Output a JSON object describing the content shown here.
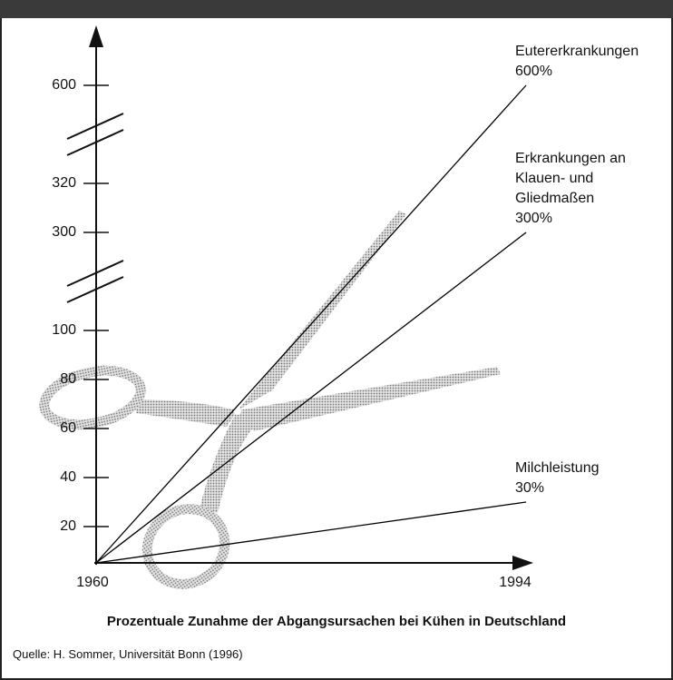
{
  "chart_data": {
    "type": "line",
    "x": [
      1960,
      1994
    ],
    "xlim": [
      1960,
      1994
    ],
    "xticks": [
      1960,
      1994
    ],
    "ylim": [
      0,
      600
    ],
    "yticks": [
      20,
      40,
      60,
      80,
      100,
      300,
      320,
      600
    ],
    "xlabel": "Prozentuale Zunahme der Abgangsursachen bei Kühen in Deutschland",
    "source": "Quelle: H. Sommer, Universität Bonn (1996)",
    "series": [
      {
        "name": "Eutererkrankungen",
        "color": "#000000",
        "values": [
          0,
          600
        ],
        "value_labels": [
          null,
          "600%"
        ]
      },
      {
        "name": "Erkrankungen an Klauen- und Gliedmaßen",
        "color": "#000000",
        "values": [
          0,
          300
        ],
        "value_labels": [
          null,
          "300%"
        ]
      },
      {
        "name": "Milchleistung",
        "color": "#000000",
        "values": [
          0,
          30
        ],
        "value_labels": [
          null,
          "30%"
        ]
      }
    ]
  }
}
